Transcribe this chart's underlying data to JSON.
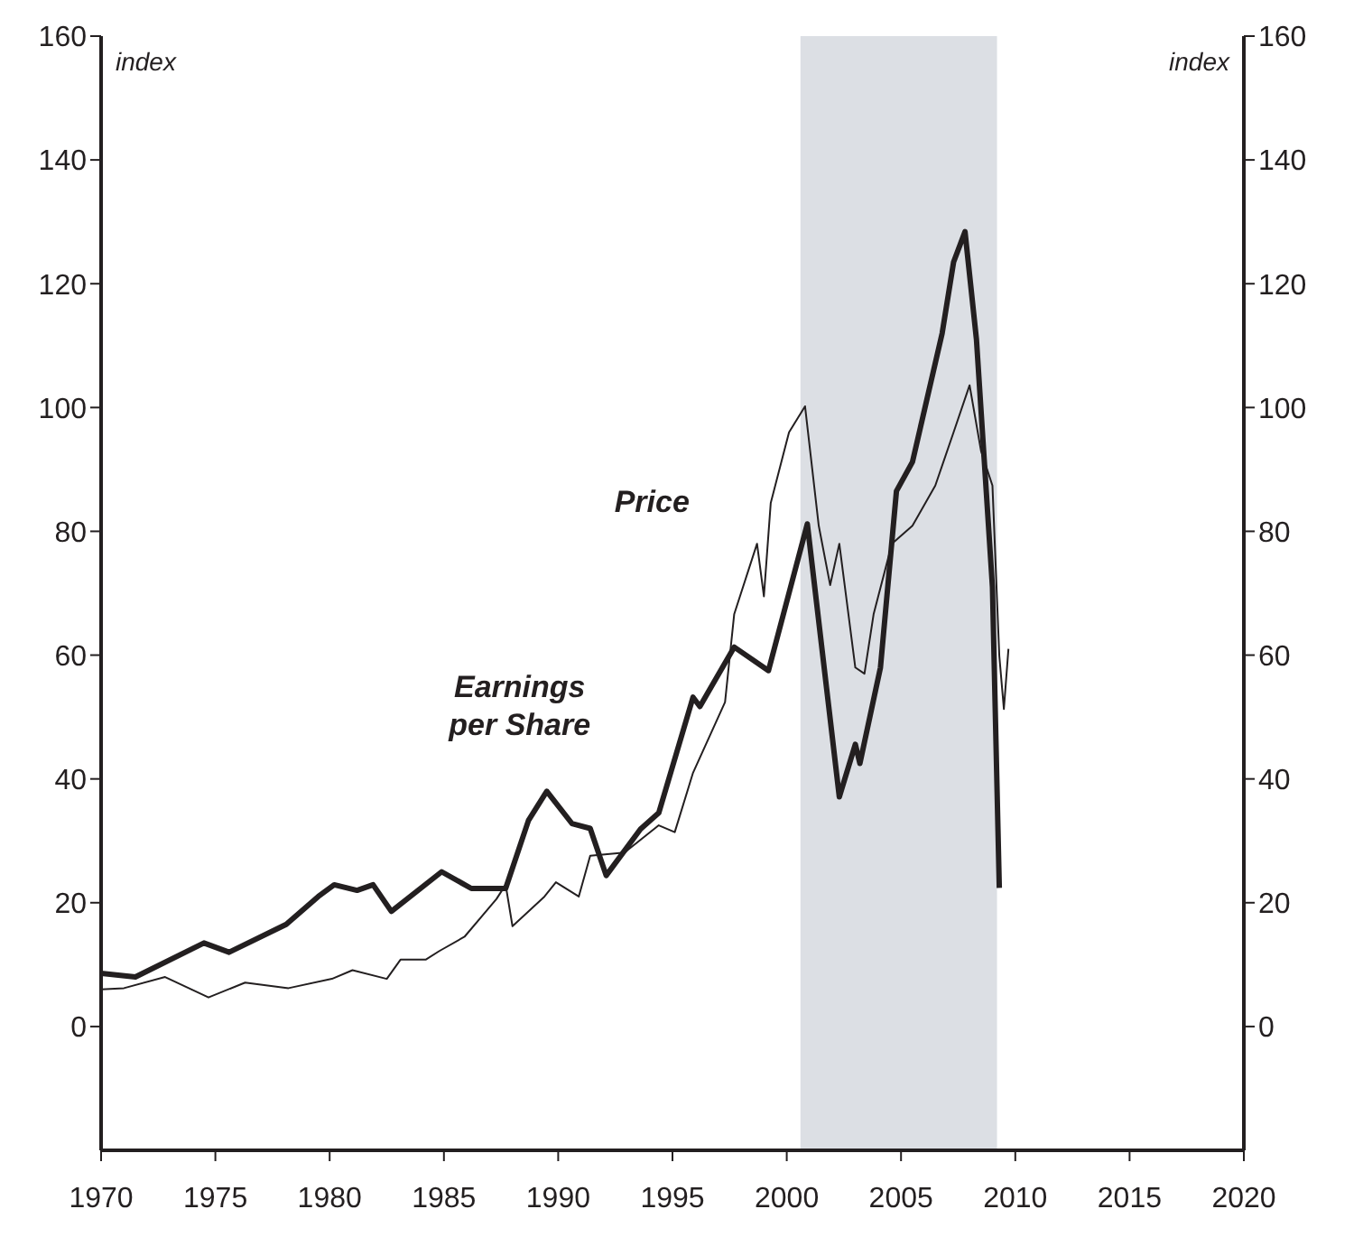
{
  "chart_data": {
    "type": "line",
    "ylabel": "index",
    "y2label": "index",
    "xlim": [
      1970,
      2020
    ],
    "xticks": [
      1970,
      1975,
      1980,
      1985,
      1990,
      1995,
      2000,
      2005,
      2010,
      2015,
      2020
    ],
    "ylim": [
      -20,
      160
    ],
    "yticks": [
      0,
      20,
      40,
      60,
      80,
      100,
      120,
      140,
      160
    ],
    "y2lim": [
      -20,
      160
    ],
    "y2ticks": [
      0,
      20,
      40,
      60,
      80,
      100,
      120,
      140,
      160
    ],
    "grid": false,
    "legend": false,
    "marker": "none",
    "line_style": "solid",
    "bands": [
      {
        "axis": "x",
        "from": 2000.6,
        "to": 2009.2,
        "color": "#dcdfe4"
      }
    ],
    "series": [
      {
        "name": "Earnings per Share",
        "color": "#231f20",
        "x": [
          1970,
          1971.5,
          1974.5,
          1975.6,
          1978.1,
          1979.5,
          1980.2,
          1981.2,
          1981.9,
          1982.7,
          1984.9,
          1986.2,
          1987.7,
          1988.7,
          1989.5,
          1990.6,
          1991.4,
          1992.1,
          1993.6,
          1994.4,
          1995.9,
          1996.2,
          1997.7,
          1999.2,
          2000.9,
          2002.3,
          2003.0,
          2003.2,
          2004.1,
          2004.8,
          2005.5,
          2006.8,
          2007.3,
          2007.8,
          2008.3,
          2009.0,
          2009.3
        ],
        "values": [
          8.6,
          8,
          13.5,
          12,
          16.5,
          21,
          22.9,
          22,
          22.9,
          18.6,
          25,
          22.3,
          22.3,
          33.3,
          38,
          32.8,
          32,
          24.4,
          31.9,
          34.5,
          53.2,
          51.7,
          61.3,
          57.5,
          81.2,
          37.1,
          45.6,
          42.5,
          58,
          86.5,
          91.2,
          112,
          123.5,
          128.4,
          111,
          71,
          22.4
        ]
      },
      {
        "name": "Price",
        "color": "#231f20",
        "x": [
          1970,
          1971,
          1972.8,
          1974.7,
          1976.3,
          1978.2,
          1980.1,
          1981,
          1982.5,
          1983.1,
          1984.2,
          1984.8,
          1985.9,
          1987.3,
          1987.7,
          1988,
          1989.4,
          1989.9,
          1990.9,
          1991.4,
          1992.9,
          1994.4,
          1995.1,
          1995.9,
          1997.3,
          1997.7,
          1998.7,
          1999,
          1999.3,
          2000.1,
          2000.8,
          2001.4,
          2001.9,
          2002.3,
          2003,
          2003.4,
          2003.8,
          2004.6,
          2005.5,
          2006.5,
          2007.3,
          2008,
          2008.5,
          2009,
          2009.3,
          2009.5,
          2009.7
        ],
        "values": [
          6,
          6.2,
          8,
          4.7,
          7.1,
          6.2,
          7.7,
          9.1,
          7.7,
          10.8,
          10.8,
          12.2,
          14.5,
          20.6,
          22.9,
          16.2,
          21,
          23.3,
          21,
          27.6,
          28.1,
          32.5,
          31.4,
          41,
          52.4,
          66.6,
          78,
          69.5,
          84.6,
          96,
          100.2,
          80.9,
          71.3,
          78,
          58,
          57,
          66.6,
          78,
          80.9,
          87.4,
          96,
          103.6,
          93,
          87.4,
          59.9,
          51.3,
          61
        ]
      }
    ]
  }
}
